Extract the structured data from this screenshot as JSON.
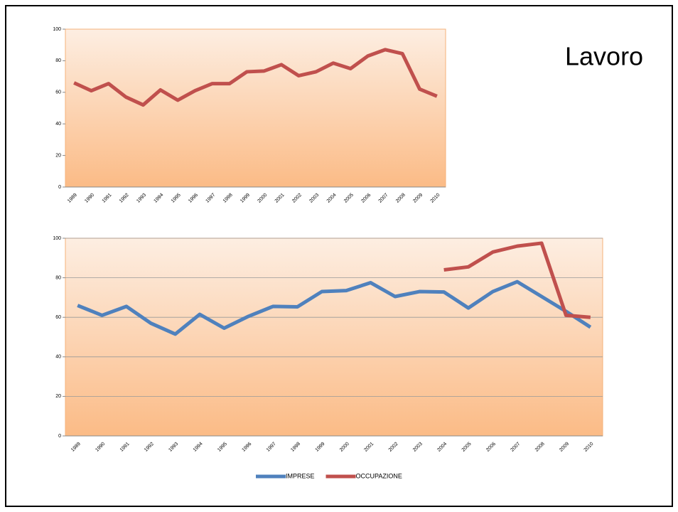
{
  "slide_title": "Lavoro",
  "chart_data": [
    {
      "type": "line",
      "categories": [
        "1989",
        "1990",
        "1991",
        "1992",
        "1993",
        "1994",
        "1995",
        "1996",
        "1997",
        "1998",
        "1999",
        "2000",
        "2001",
        "2002",
        "2003",
        "2004",
        "2005",
        "2006",
        "2007",
        "2008",
        "2009",
        "2010"
      ],
      "values": [
        66,
        61,
        65.5,
        57,
        52,
        61.5,
        55,
        61,
        65.5,
        65.5,
        73,
        73.5,
        77.5,
        70.5,
        73,
        78.5,
        75,
        83,
        87,
        84.5,
        62,
        57.5
      ],
      "color": "#c0504d",
      "ylim": [
        0,
        100
      ],
      "yticks": [
        0,
        20,
        40,
        60,
        80,
        100
      ],
      "grid": false
    },
    {
      "type": "line",
      "categories": [
        "1989",
        "1990",
        "1991",
        "1992",
        "1993",
        "1994",
        "1995",
        "1996",
        "1997",
        "1998",
        "1999",
        "2000",
        "2001",
        "2002",
        "2003",
        "2004",
        "2005",
        "2006",
        "2007",
        "2008",
        "2009",
        "2010"
      ],
      "series": [
        {
          "name": "IMPRESE",
          "color": "#4f81bd",
          "values": [
            66,
            61,
            65.5,
            57,
            51.5,
            61.5,
            54.5,
            60.5,
            65.5,
            65.3,
            73,
            73.5,
            77.5,
            70.5,
            73,
            72.8,
            64.7,
            73,
            78,
            70.5,
            63,
            55
          ]
        },
        {
          "name": "OCCUPAZIONE",
          "color": "#c0504d",
          "values": [
            null,
            null,
            null,
            null,
            null,
            null,
            null,
            null,
            null,
            null,
            null,
            null,
            null,
            null,
            null,
            84,
            85.5,
            93,
            96,
            97.5,
            61,
            60
          ]
        }
      ],
      "ylim": [
        0,
        100
      ],
      "yticks": [
        0,
        20,
        40,
        60,
        80,
        100
      ],
      "grid": true,
      "legend": "bottom"
    }
  ]
}
